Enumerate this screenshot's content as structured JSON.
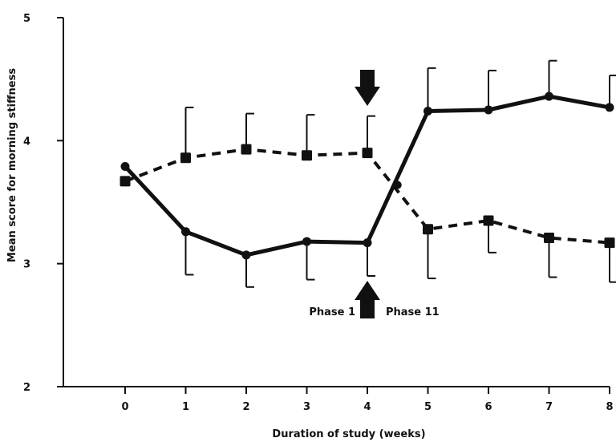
{
  "chart_data": {
    "type": "line",
    "title": "",
    "xlabel": "Duration of study (weeks)",
    "ylabel": "Mean score for morning stiffness",
    "x": [
      0,
      1,
      2,
      3,
      4,
      5,
      6,
      7,
      8
    ],
    "xlim": [
      -1,
      8
    ],
    "ylim": [
      2,
      5
    ],
    "x_ticks": [
      "0",
      "1",
      "2",
      "3",
      "4",
      "5",
      "6",
      "7",
      "8"
    ],
    "y_ticks": [
      "2",
      "3",
      "4",
      "5"
    ],
    "grid": false,
    "series": [
      {
        "style": "solid",
        "color": "#111111",
        "marker": "circle",
        "values": [
          3.79,
          3.26,
          3.07,
          3.18,
          3.17,
          4.24,
          4.25,
          4.36,
          4.27
        ],
        "error_upper": [
          null,
          0.0,
          0.0,
          0.0,
          0.0,
          4.59,
          4.57,
          4.65,
          4.53
        ],
        "error_lower": [
          null,
          2.91,
          2.81,
          2.87,
          2.9,
          null,
          null,
          null,
          null
        ]
      },
      {
        "style": "dashed",
        "color": "#111111",
        "marker": "square",
        "values": [
          3.67,
          3.86,
          3.93,
          3.88,
          3.9,
          3.28,
          3.35,
          3.21,
          3.17
        ],
        "error_upper": [
          null,
          4.27,
          4.22,
          4.21,
          4.2,
          null,
          null,
          null,
          null
        ],
        "error_lower": [
          null,
          null,
          null,
          null,
          null,
          2.88,
          3.09,
          2.89,
          2.85
        ]
      }
    ],
    "crossing_point": {
      "x": 4.5,
      "y": 3.64
    },
    "annotations": {
      "phase_left": "Phase 1",
      "phase_right": "Phase 11",
      "phase_boundary_x": 4,
      "arrow_up_icon": "up-arrow-icon",
      "arrow_down_icon": "down-arrow-icon"
    }
  }
}
